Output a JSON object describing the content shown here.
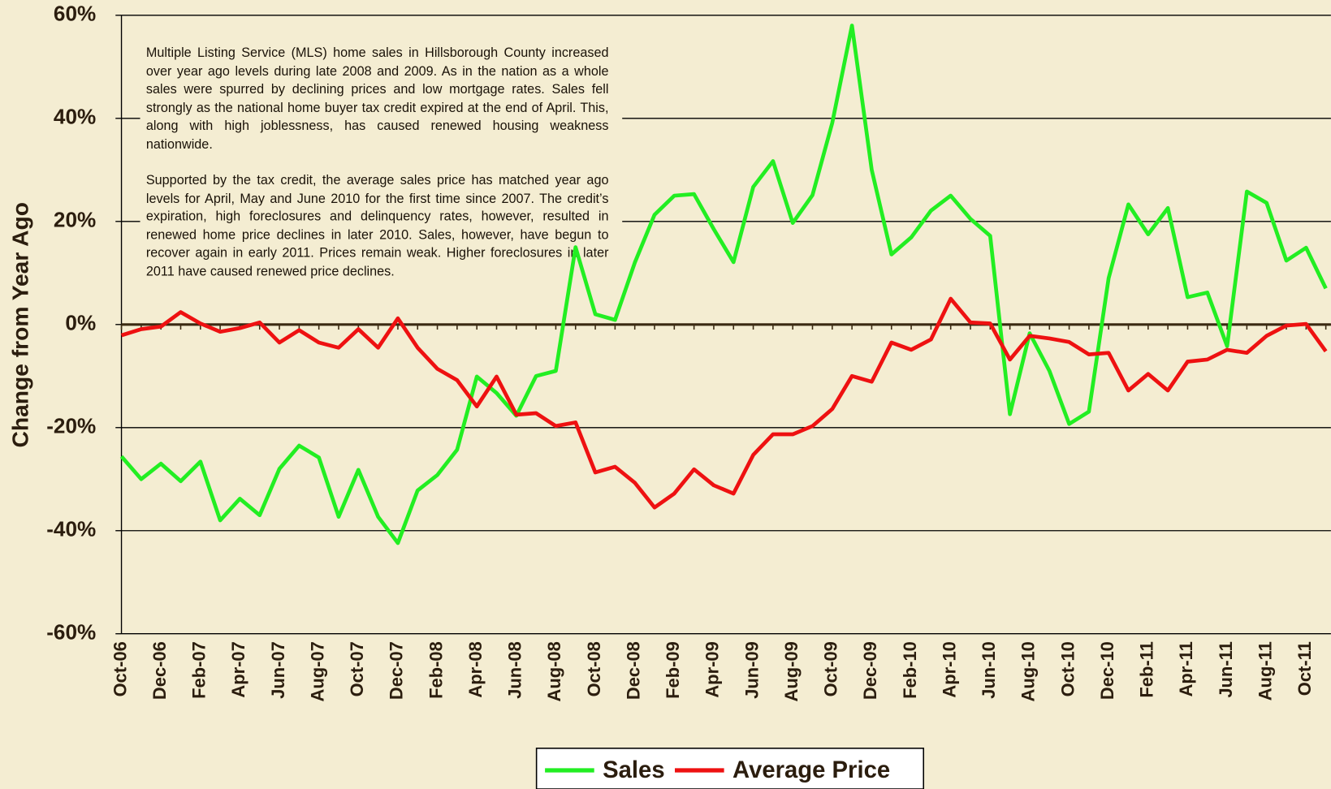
{
  "chart_data": {
    "type": "line",
    "y_label": "Change from Year Ago",
    "annotations": [
      "Multiple Listing Service (MLS) home sales in Hillsborough County increased over year ago levels during late 2008 and 2009.  As in the nation as a whole sales were spurred by declining prices and low mortgage rates.  Sales fell strongly as the national home buyer tax credit expired at the end of April.  This, along with high joblessness, has caused renewed housing weakness nationwide.",
      "Supported by the tax credit, the average sales price has matched year ago levels for April, May and June 2010 for the first time since 2007.  The credit’s expiration, high foreclosures and delinquency rates, however, resulted in renewed home price declines in later 2010.  Sales, however, have begun to recover again in early 2011.  Prices remain weak.  Higher foreclosures in later 2011 have caused renewed price declines."
    ],
    "categories": [
      "Oct-06",
      null,
      "Dec-06",
      null,
      "Feb-07",
      null,
      "Apr-07",
      null,
      "Jun-07",
      null,
      "Aug-07",
      null,
      "Oct-07",
      null,
      "Dec-07",
      null,
      "Feb-08",
      null,
      "Apr-08",
      null,
      "Jun-08",
      null,
      "Aug-08",
      null,
      "Oct-08",
      null,
      "Dec-08",
      null,
      "Feb-09",
      null,
      "Apr-09",
      null,
      "Jun-09",
      null,
      "Aug-09",
      null,
      "Oct-09",
      null,
      "Dec-09",
      null,
      "Feb-10",
      null,
      "Apr-10",
      null,
      "Jun-10",
      null,
      "Aug-10",
      null,
      "Oct-10",
      null,
      "Dec-10",
      null,
      "Feb-11",
      null,
      "Apr-11",
      null,
      "Jun-11",
      null,
      "Aug-11",
      null,
      "Oct-11",
      null
    ],
    "series": [
      {
        "name": "Sales",
        "color": "#22ee22",
        "values": [
          -25.6,
          -30,
          -27,
          -30.4,
          -26.6,
          -38,
          -33.8,
          -37,
          -28,
          -23.5,
          -25.8,
          -37.3,
          -28.2,
          -37.3,
          -42.4,
          -32.2,
          -29.2,
          -24.3,
          -10.1,
          -13.3,
          -17.7,
          -10,
          -9,
          15,
          2,
          0.9,
          12,
          21.3,
          25,
          25.3,
          18.5,
          12.1,
          26.7,
          31.7,
          19.7,
          25.1,
          39.1,
          58,
          30,
          13.6,
          16.9,
          22.1,
          25,
          20.5,
          17.2,
          -17.4,
          -1.7,
          -9,
          -19.3,
          -16.9,
          9,
          23.3,
          17.5,
          22.6,
          5.3,
          6.2,
          -4.2,
          25.8,
          23.6,
          12.4,
          14.9,
          7
        ]
      },
      {
        "name": "Average Price",
        "color": "#ee1111",
        "values": [
          -2.1,
          -0.9,
          -0.4,
          2.4,
          0.2,
          -1.4,
          -0.7,
          0.4,
          -3.5,
          -1.1,
          -3.5,
          -4.5,
          -0.9,
          -4.5,
          1.2,
          -4.5,
          -8.6,
          -10.8,
          -15.9,
          -10.1,
          -17.5,
          -17.2,
          -19.7,
          -19,
          -28.7,
          -27.6,
          -30.7,
          -35.5,
          -32.8,
          -28.1,
          -31.2,
          -32.8,
          -25.3,
          -21.3,
          -21.3,
          -19.7,
          -16.4,
          -10,
          -11.1,
          -3.5,
          -4.9,
          -2.9,
          5,
          0.4,
          0.2,
          -6.8,
          -2.2,
          -2.7,
          -3.4,
          -5.8,
          -5.5,
          -12.8,
          -9.6,
          -12.8,
          -7.2,
          -6.8,
          -4.9,
          -5.5,
          -2.2,
          -0.2,
          0.1,
          -5.2
        ]
      }
    ],
    "ylim": [
      -60,
      60
    ],
    "yticks": [
      {
        "value": -60,
        "label": "-60%"
      },
      {
        "value": -40,
        "label": "-40%"
      },
      {
        "value": -20,
        "label": "-20%"
      },
      {
        "value": 0,
        "label": "0%"
      },
      {
        "value": 20,
        "label": "20%"
      },
      {
        "value": 40,
        "label": "40%"
      },
      {
        "value": 60,
        "label": "60%"
      }
    ],
    "grid": true,
    "legend": "bottom"
  }
}
